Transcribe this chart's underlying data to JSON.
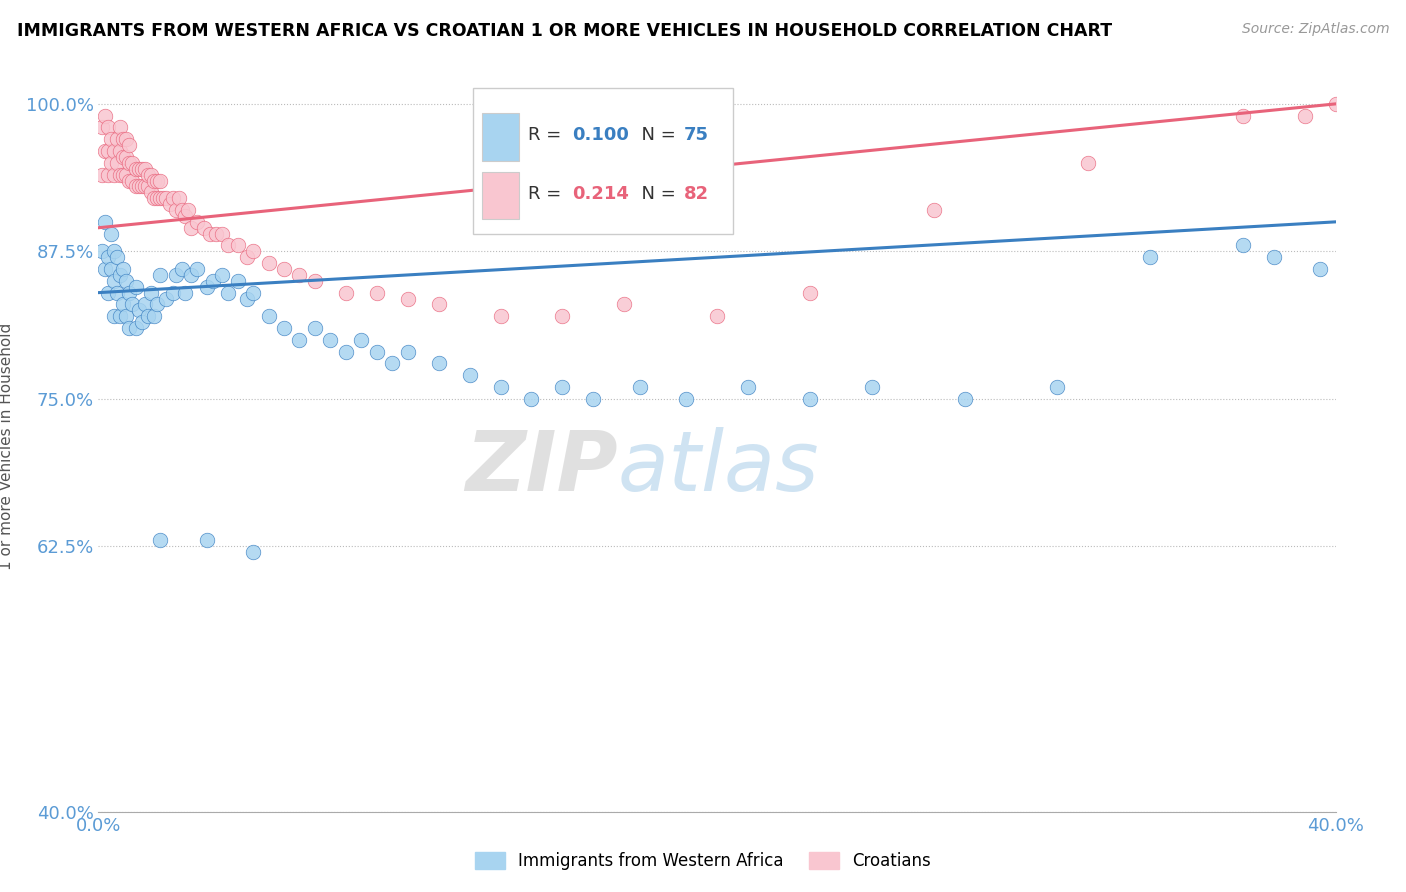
{
  "title": "IMMIGRANTS FROM WESTERN AFRICA VS CROATIAN 1 OR MORE VEHICLES IN HOUSEHOLD CORRELATION CHART",
  "source": "Source: ZipAtlas.com",
  "ylabel": "1 or more Vehicles in Household",
  "xlim": [
    0.0,
    0.4
  ],
  "ylim": [
    0.4,
    1.02
  ],
  "xticks": [
    0.0,
    0.05,
    0.1,
    0.15,
    0.2,
    0.25,
    0.3,
    0.35,
    0.4
  ],
  "xticklabels": [
    "0.0%",
    "",
    "",
    "",
    "",
    "",
    "",
    "",
    "40.0%"
  ],
  "yticks": [
    0.4,
    0.625,
    0.75,
    0.875,
    1.0
  ],
  "yticklabels": [
    "40.0%",
    "62.5%",
    "75.0%",
    "87.5%",
    "100.0%"
  ],
  "blue_R": 0.1,
  "blue_N": 75,
  "pink_R": 0.214,
  "pink_N": 82,
  "blue_color": "#a8d4f0",
  "pink_color": "#f9c6d0",
  "blue_line_color": "#3a7fc1",
  "pink_line_color": "#e8637a",
  "blue_line_label_color": "#3a7fc1",
  "pink_line_label_color": "#e8637a",
  "legend1_label": "Immigrants from Western Africa",
  "legend2_label": "Croatians",
  "blue_scatter_x": [
    0.001,
    0.002,
    0.002,
    0.003,
    0.003,
    0.004,
    0.004,
    0.005,
    0.005,
    0.005,
    0.006,
    0.006,
    0.007,
    0.007,
    0.008,
    0.008,
    0.009,
    0.009,
    0.01,
    0.01,
    0.011,
    0.012,
    0.012,
    0.013,
    0.014,
    0.015,
    0.016,
    0.017,
    0.018,
    0.019,
    0.02,
    0.022,
    0.024,
    0.025,
    0.027,
    0.028,
    0.03,
    0.032,
    0.035,
    0.037,
    0.04,
    0.042,
    0.045,
    0.048,
    0.05,
    0.055,
    0.06,
    0.065,
    0.07,
    0.075,
    0.08,
    0.085,
    0.09,
    0.095,
    0.1,
    0.11,
    0.12,
    0.13,
    0.14,
    0.15,
    0.16,
    0.175,
    0.19,
    0.21,
    0.23,
    0.25,
    0.28,
    0.31,
    0.34,
    0.37,
    0.38,
    0.395,
    0.02,
    0.035,
    0.05
  ],
  "blue_scatter_y": [
    0.875,
    0.86,
    0.9,
    0.87,
    0.84,
    0.89,
    0.86,
    0.875,
    0.85,
    0.82,
    0.87,
    0.84,
    0.855,
    0.82,
    0.86,
    0.83,
    0.85,
    0.82,
    0.84,
    0.81,
    0.83,
    0.845,
    0.81,
    0.825,
    0.815,
    0.83,
    0.82,
    0.84,
    0.82,
    0.83,
    0.855,
    0.835,
    0.84,
    0.855,
    0.86,
    0.84,
    0.855,
    0.86,
    0.845,
    0.85,
    0.855,
    0.84,
    0.85,
    0.835,
    0.84,
    0.82,
    0.81,
    0.8,
    0.81,
    0.8,
    0.79,
    0.8,
    0.79,
    0.78,
    0.79,
    0.78,
    0.77,
    0.76,
    0.75,
    0.76,
    0.75,
    0.76,
    0.75,
    0.76,
    0.75,
    0.76,
    0.75,
    0.76,
    0.87,
    0.88,
    0.87,
    0.86,
    0.63,
    0.63,
    0.62
  ],
  "pink_scatter_x": [
    0.001,
    0.001,
    0.002,
    0.002,
    0.003,
    0.003,
    0.003,
    0.004,
    0.004,
    0.005,
    0.005,
    0.006,
    0.006,
    0.007,
    0.007,
    0.007,
    0.008,
    0.008,
    0.008,
    0.009,
    0.009,
    0.009,
    0.01,
    0.01,
    0.01,
    0.011,
    0.011,
    0.012,
    0.012,
    0.013,
    0.013,
    0.014,
    0.014,
    0.015,
    0.015,
    0.016,
    0.016,
    0.017,
    0.017,
    0.018,
    0.018,
    0.019,
    0.019,
    0.02,
    0.02,
    0.021,
    0.022,
    0.023,
    0.024,
    0.025,
    0.026,
    0.027,
    0.028,
    0.029,
    0.03,
    0.032,
    0.034,
    0.036,
    0.038,
    0.04,
    0.042,
    0.045,
    0.048,
    0.05,
    0.055,
    0.06,
    0.065,
    0.07,
    0.08,
    0.09,
    0.1,
    0.11,
    0.13,
    0.15,
    0.17,
    0.2,
    0.23,
    0.27,
    0.32,
    0.37,
    0.39,
    0.4
  ],
  "pink_scatter_y": [
    0.94,
    0.98,
    0.96,
    0.99,
    0.94,
    0.96,
    0.98,
    0.95,
    0.97,
    0.94,
    0.96,
    0.95,
    0.97,
    0.94,
    0.96,
    0.98,
    0.94,
    0.955,
    0.97,
    0.94,
    0.955,
    0.97,
    0.935,
    0.95,
    0.965,
    0.935,
    0.95,
    0.93,
    0.945,
    0.93,
    0.945,
    0.93,
    0.945,
    0.93,
    0.945,
    0.93,
    0.94,
    0.925,
    0.94,
    0.92,
    0.935,
    0.92,
    0.935,
    0.92,
    0.935,
    0.92,
    0.92,
    0.915,
    0.92,
    0.91,
    0.92,
    0.91,
    0.905,
    0.91,
    0.895,
    0.9,
    0.895,
    0.89,
    0.89,
    0.89,
    0.88,
    0.88,
    0.87,
    0.875,
    0.865,
    0.86,
    0.855,
    0.85,
    0.84,
    0.84,
    0.835,
    0.83,
    0.82,
    0.82,
    0.83,
    0.82,
    0.84,
    0.91,
    0.95,
    0.99,
    0.99,
    1.0
  ],
  "blue_line_x0": 0.0,
  "blue_line_x1": 0.4,
  "blue_line_y0": 0.84,
  "blue_line_y1": 0.9,
  "pink_line_x0": 0.0,
  "pink_line_x1": 0.4,
  "pink_line_y0": 0.895,
  "pink_line_y1": 1.0
}
